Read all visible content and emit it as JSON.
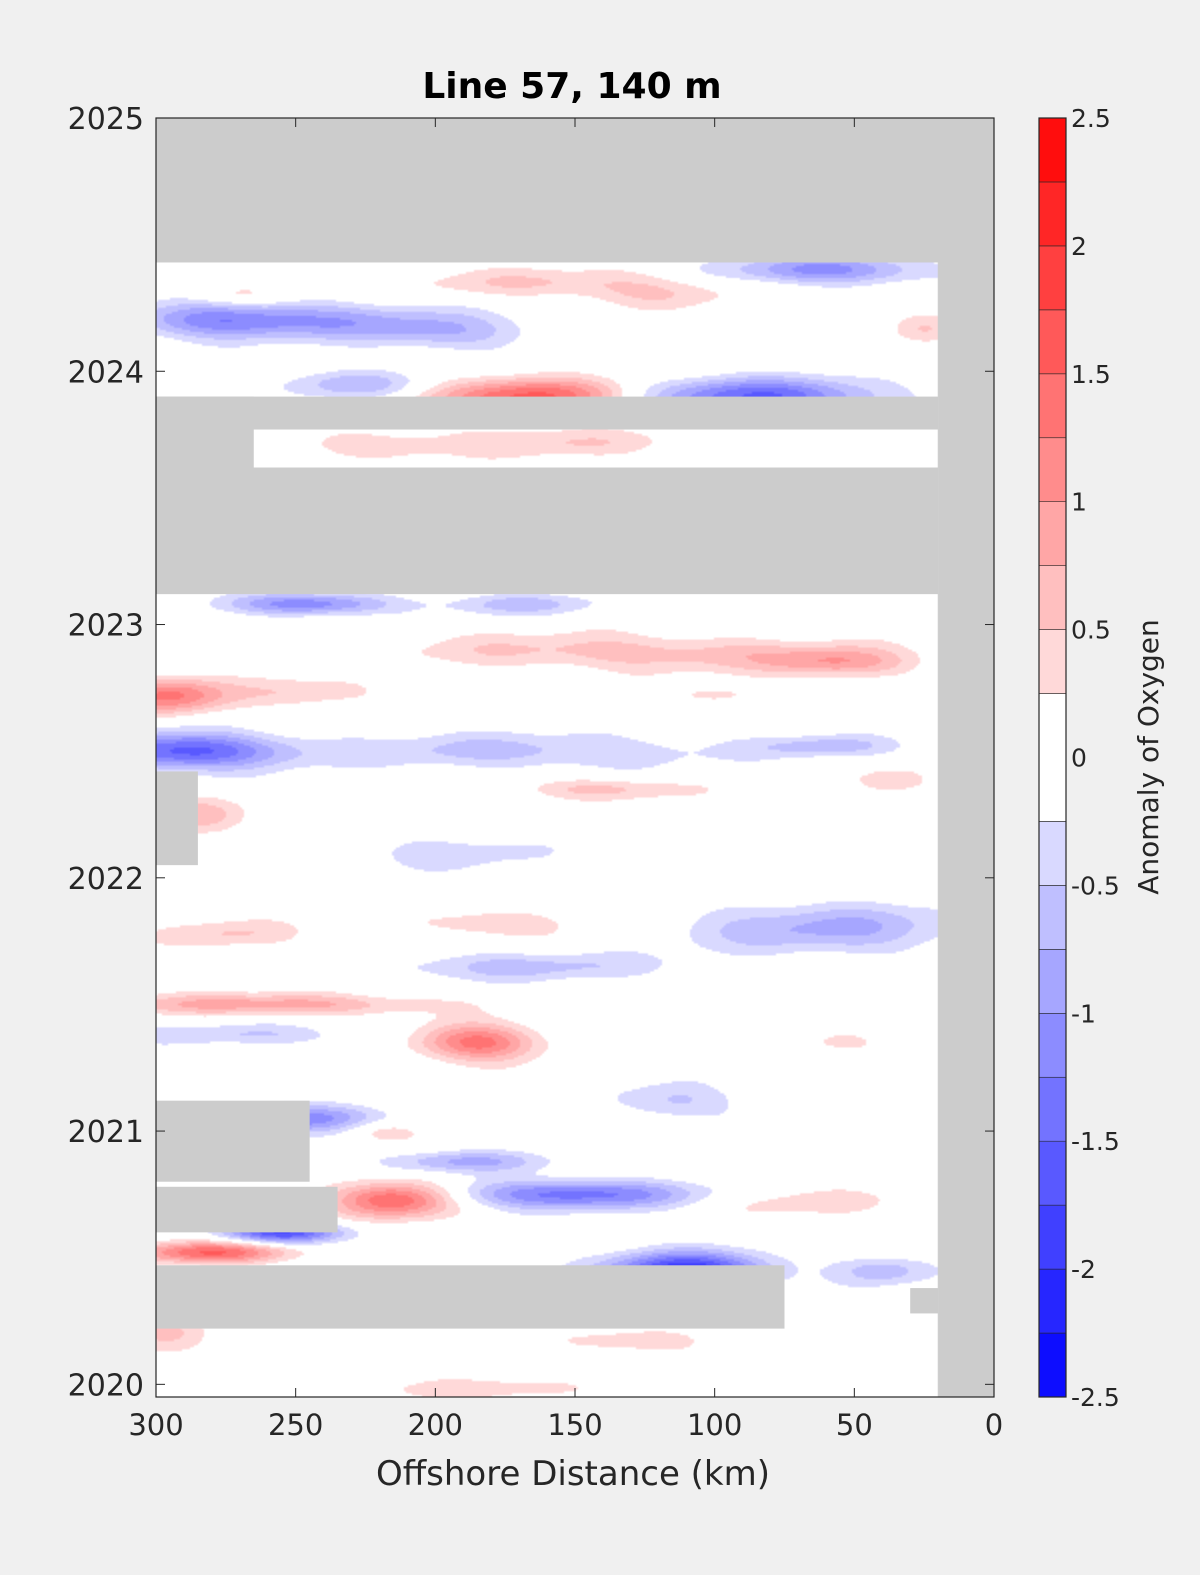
{
  "chart_data": {
    "type": "heatmap",
    "title": "Line 57, 140 m",
    "xlabel": "Offshore Distance (km)",
    "ylabel": "",
    "x_ticks": [
      300,
      250,
      200,
      150,
      100,
      50,
      0
    ],
    "x_tick_labels": [
      "300",
      "250",
      "200",
      "150",
      "100",
      "50",
      "0"
    ],
    "xlim": [
      300,
      0
    ],
    "x_reversed": true,
    "y_ticks": [
      2020,
      2021,
      2022,
      2023,
      2024,
      2025
    ],
    "y_tick_labels": [
      "2020",
      "2021",
      "2022",
      "2023",
      "2024",
      "2025"
    ],
    "ylim": [
      2019.95,
      2025
    ],
    "colorbar": {
      "label": "Anomaly of Oxygen",
      "range": [
        -2.5,
        2.5
      ],
      "levels": [
        -2.5,
        -2.25,
        -2.0,
        -1.75,
        -1.5,
        -1.25,
        -1.0,
        -0.75,
        -0.5,
        -0.25,
        0.25,
        0.5,
        0.75,
        1.0,
        1.25,
        1.5,
        1.75,
        2.0,
        2.25,
        2.5
      ],
      "ticks": [
        -2.5,
        -2,
        -1.5,
        -1,
        -0.5,
        0,
        0.5,
        1,
        1.5,
        2,
        2.5
      ],
      "tick_labels": [
        "-2.5",
        "-2",
        "-1.5",
        "-1",
        "-0.5",
        "0",
        "0.5",
        "1",
        "1.5",
        "2",
        "2.5"
      ],
      "colormap": "blue-white-red",
      "low_color": "#0000ff",
      "high_color": "#ff0000",
      "mid_color": "#ffffff"
    },
    "no_data_color": "#cccccc",
    "grid": false,
    "data_extent": {
      "x_min": 20,
      "x_max": 300,
      "y_min": 2019.95,
      "y_max": 2024.43
    },
    "missing_periods": [
      {
        "x_min": 0,
        "x_max": 300,
        "y_min": 2024.43,
        "y_max": 2025
      },
      {
        "x_min": 0,
        "x_max": 20,
        "y_min": 2019.95,
        "y_max": 2025
      },
      {
        "x_min": 20,
        "x_max": 300,
        "y_min": 2023.12,
        "y_max": 2023.62
      },
      {
        "x_min": 265,
        "x_max": 300,
        "y_min": 2023.62,
        "y_max": 2023.9
      },
      {
        "x_min": 20,
        "x_max": 300,
        "y_min": 2023.77,
        "y_max": 2023.9
      },
      {
        "x_min": 285,
        "x_max": 300,
        "y_min": 2022.05,
        "y_max": 2022.42
      },
      {
        "x_min": 245,
        "x_max": 300,
        "y_min": 2020.8,
        "y_max": 2021.12
      },
      {
        "x_min": 235,
        "x_max": 300,
        "y_min": 2020.6,
        "y_max": 2020.78
      },
      {
        "x_min": 75,
        "x_max": 300,
        "y_min": 2020.22,
        "y_max": 2020.47
      },
      {
        "x_min": 20,
        "x_max": 30,
        "y_min": 2020.28,
        "y_max": 2020.38
      }
    ],
    "anomalies": [
      {
        "x": 280,
        "y": 2024.2,
        "sx": 22,
        "sy": 0.05,
        "v": -0.9
      },
      {
        "x": 240,
        "y": 2024.2,
        "sx": 30,
        "sy": 0.05,
        "v": -0.8
      },
      {
        "x": 195,
        "y": 2024.15,
        "sx": 22,
        "sy": 0.05,
        "v": -0.6
      },
      {
        "x": 230,
        "y": 2023.95,
        "sx": 18,
        "sy": 0.04,
        "v": -0.7
      },
      {
        "x": 60,
        "y": 2024.4,
        "sx": 25,
        "sy": 0.04,
        "v": -1.1
      },
      {
        "x": 160,
        "y": 2024.35,
        "sx": 35,
        "sy": 0.04,
        "v": 0.5
      },
      {
        "x": 270,
        "y": 2024.3,
        "sx": 12,
        "sy": 0.03,
        "v": 0.4
      },
      {
        "x": 120,
        "y": 2024.3,
        "sx": 20,
        "sy": 0.04,
        "v": 0.4
      },
      {
        "x": 25,
        "y": 2024.17,
        "sx": 8,
        "sy": 0.04,
        "v": 0.4
      },
      {
        "x": 165,
        "y": 2023.9,
        "sx": 25,
        "sy": 0.05,
        "v": 1.6
      },
      {
        "x": 85,
        "y": 2023.9,
        "sx": 30,
        "sy": 0.05,
        "v": -1.5
      },
      {
        "x": 160,
        "y": 2023.72,
        "sx": 30,
        "sy": 0.04,
        "v": 0.5
      },
      {
        "x": 220,
        "y": 2023.7,
        "sx": 20,
        "sy": 0.04,
        "v": 0.4
      },
      {
        "x": 245,
        "y": 2023.08,
        "sx": 20,
        "sy": 0.03,
        "v": -1.2
      },
      {
        "x": 170,
        "y": 2023.08,
        "sx": 20,
        "sy": 0.03,
        "v": -0.6
      },
      {
        "x": 165,
        "y": 2022.9,
        "sx": 40,
        "sy": 0.05,
        "v": 0.4
      },
      {
        "x": 55,
        "y": 2022.85,
        "sx": 18,
        "sy": 0.04,
        "v": 0.8
      },
      {
        "x": 100,
        "y": 2022.88,
        "sx": 40,
        "sy": 0.05,
        "v": 0.5
      },
      {
        "x": 295,
        "y": 2022.72,
        "sx": 15,
        "sy": 0.05,
        "v": 1.3
      },
      {
        "x": 245,
        "y": 2022.73,
        "sx": 18,
        "sy": 0.04,
        "v": 0.5
      },
      {
        "x": 100,
        "y": 2022.72,
        "sx": 12,
        "sy": 0.03,
        "v": 0.4
      },
      {
        "x": 290,
        "y": 2022.5,
        "sx": 25,
        "sy": 0.05,
        "v": -1.6
      },
      {
        "x": 170,
        "y": 2022.5,
        "sx": 50,
        "sy": 0.05,
        "v": -0.6
      },
      {
        "x": 60,
        "y": 2022.52,
        "sx": 18,
        "sy": 0.03,
        "v": -0.6
      },
      {
        "x": 140,
        "y": 2022.35,
        "sx": 22,
        "sy": 0.03,
        "v": 0.6
      },
      {
        "x": 35,
        "y": 2022.38,
        "sx": 10,
        "sy": 0.04,
        "v": 0.5
      },
      {
        "x": 285,
        "y": 2022.25,
        "sx": 12,
        "sy": 0.05,
        "v": 0.6
      },
      {
        "x": 195,
        "y": 2022.1,
        "sx": 25,
        "sy": 0.05,
        "v": -0.4
      },
      {
        "x": 60,
        "y": 2021.8,
        "sx": 35,
        "sy": 0.07,
        "v": -0.8
      },
      {
        "x": 180,
        "y": 2021.82,
        "sx": 20,
        "sy": 0.04,
        "v": 0.5
      },
      {
        "x": 275,
        "y": 2021.78,
        "sx": 18,
        "sy": 0.04,
        "v": 0.5
      },
      {
        "x": 170,
        "y": 2021.65,
        "sx": 35,
        "sy": 0.04,
        "v": -0.6
      },
      {
        "x": 260,
        "y": 2021.5,
        "sx": 40,
        "sy": 0.03,
        "v": 0.9
      },
      {
        "x": 185,
        "y": 2021.35,
        "sx": 15,
        "sy": 0.05,
        "v": 1.4
      },
      {
        "x": 270,
        "y": 2021.38,
        "sx": 30,
        "sy": 0.03,
        "v": -0.5
      },
      {
        "x": 55,
        "y": 2021.35,
        "sx": 10,
        "sy": 0.03,
        "v": 0.4
      },
      {
        "x": 115,
        "y": 2021.12,
        "sx": 15,
        "sy": 0.05,
        "v": -0.6
      },
      {
        "x": 250,
        "y": 2021.05,
        "sx": 20,
        "sy": 0.04,
        "v": -1.2
      },
      {
        "x": 220,
        "y": 2021.0,
        "sx": 10,
        "sy": 0.03,
        "v": 0.5
      },
      {
        "x": 215,
        "y": 2020.73,
        "sx": 15,
        "sy": 0.05,
        "v": 1.6
      },
      {
        "x": 150,
        "y": 2020.75,
        "sx": 30,
        "sy": 0.04,
        "v": -1.4
      },
      {
        "x": 190,
        "y": 2020.88,
        "sx": 20,
        "sy": 0.03,
        "v": -0.8
      },
      {
        "x": 255,
        "y": 2020.6,
        "sx": 15,
        "sy": 0.03,
        "v": -1.8
      },
      {
        "x": 280,
        "y": 2020.52,
        "sx": 20,
        "sy": 0.03,
        "v": 1.5
      },
      {
        "x": 110,
        "y": 2020.45,
        "sx": 20,
        "sy": 0.05,
        "v": -2.0
      },
      {
        "x": 180,
        "y": 2020.3,
        "sx": 45,
        "sy": 0.03,
        "v": -1.3
      },
      {
        "x": 40,
        "y": 2020.45,
        "sx": 12,
        "sy": 0.04,
        "v": -0.7
      },
      {
        "x": 70,
        "y": 2020.72,
        "sx": 25,
        "sy": 0.04,
        "v": 0.4
      },
      {
        "x": 135,
        "y": 2020.18,
        "sx": 20,
        "sy": 0.04,
        "v": 0.4
      },
      {
        "x": 295,
        "y": 2020.2,
        "sx": 12,
        "sy": 0.05,
        "v": 0.6
      },
      {
        "x": 180,
        "y": 2019.98,
        "sx": 30,
        "sy": 0.03,
        "v": 0.4
      }
    ]
  }
}
